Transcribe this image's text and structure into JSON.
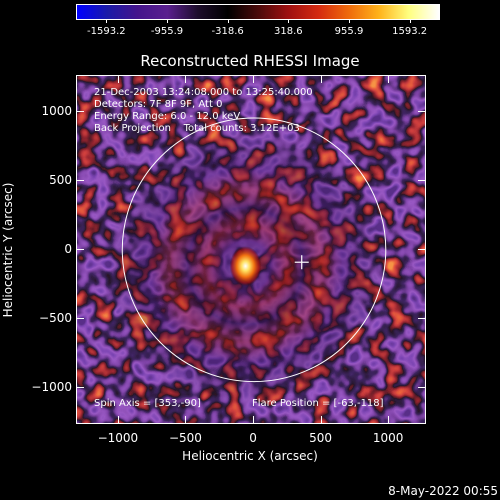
{
  "colorbar": {
    "ticks": [
      "-1593.2",
      "-955.9",
      "-318.6",
      "318.6",
      "955.9",
      "1593.2"
    ],
    "colors": [
      "#0000ff",
      "#1a1aa8",
      "#44148c",
      "#5a1f8e",
      "#1e0d2c",
      "#000000",
      "#4a0a0a",
      "#9e1010",
      "#d42a10",
      "#ee6a0c",
      "#ffb21a",
      "#ffff80",
      "#ffffff"
    ]
  },
  "plot": {
    "title": "Reconstructed RHESSI Image",
    "info_lines": [
      "21-Dec-2003 13:24:08.000 to 13:25:40.000",
      "Detectors: 7F 8F 9F, Att 0",
      "Energy Range: 6.0 - 12.0 keV",
      "Back Projection    Total counts: 3.12E+03"
    ],
    "spin_axis": "Spin Axis = [353,-90]",
    "flare_position": "Flare Position = [-63,-118]",
    "xaxis_title": "Heliocentric X (arcsec)",
    "yaxis_title": "Heliocentric Y (arcsec)",
    "xticks": [
      "−1000",
      "−500",
      "0",
      "500",
      "1000"
    ],
    "yticks": [
      "1000",
      "500",
      "0",
      "−500",
      "−1000"
    ],
    "x_range": [
      -1310,
      1280
    ],
    "y_range": [
      -1270,
      1260
    ],
    "disk_radius": 975,
    "crosshair": [
      353,
      -90
    ],
    "source_peak": [
      -63,
      -118
    ]
  },
  "footer": {
    "date": "8-May-2022 00:55"
  }
}
